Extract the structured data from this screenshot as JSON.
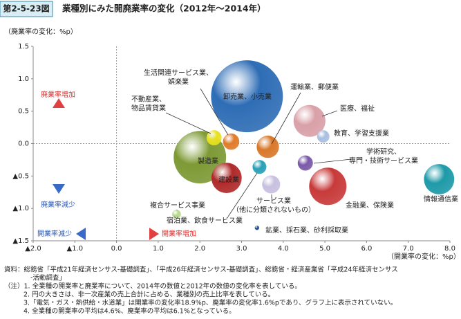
{
  "chart_data": {
    "type": "bubble",
    "figure_label": "第2-5-23図",
    "title": "業種別にみた開廃業率の変化（2012年～2014年）",
    "y_label": "（廃業率の変化：%p）",
    "x_label": "（開業率の変化：%p）",
    "xlim": [
      -2,
      8
    ],
    "ylim": [
      -1.5,
      1.5
    ],
    "xticks": [
      {
        "value": -2,
        "label": "▲2.0"
      },
      {
        "value": -1,
        "label": "▲1.0"
      },
      {
        "value": 0,
        "label": "0.0"
      },
      {
        "value": 1,
        "label": "1.0"
      },
      {
        "value": 2,
        "label": "2.0"
      },
      {
        "value": 3,
        "label": "3.0"
      },
      {
        "value": 4,
        "label": "4.0"
      },
      {
        "value": 5,
        "label": "5.0"
      },
      {
        "value": 6,
        "label": "6.0"
      },
      {
        "value": 7,
        "label": "7.0"
      },
      {
        "value": 8,
        "label": "8.0"
      }
    ],
    "yticks": [
      {
        "value": 1.5,
        "label": "1.5"
      },
      {
        "value": 1,
        "label": "1.0"
      },
      {
        "value": 0.5,
        "label": "0.5"
      },
      {
        "value": 0,
        "label": "0.0"
      },
      {
        "value": -0.5,
        "label": "▲0.5"
      },
      {
        "value": -1,
        "label": "▲1.0"
      },
      {
        "value": -1.5,
        "label": "▲1.5"
      }
    ],
    "points": [
      {
        "name": "卸売業、小売業",
        "x": 3.13,
        "y": 0.73,
        "size": 27,
        "color": "#2e6db5"
      },
      {
        "name": "製造業",
        "x": 2.0,
        "y": -0.21,
        "size": 14.4,
        "color": "#7d9a35"
      },
      {
        "name": "生活関連サービス業、\n娯楽業",
        "x": 2.75,
        "y": 0.03,
        "size": 1.4,
        "color": "#e07b2a"
      },
      {
        "name": "不動産業、\n物品賃貸業",
        "x": 2.34,
        "y": 0.09,
        "size": 1.2,
        "color": "#e8e020"
      },
      {
        "name": "建設業",
        "x": 2.64,
        "y": -0.53,
        "size": 4.8,
        "color": "#b02a2a"
      },
      {
        "name": "運輸業、郵便業",
        "x": 3.63,
        "y": -0.05,
        "size": 2.6,
        "color": "#d9782a"
      },
      {
        "name": "医療、福祉",
        "x": 4.63,
        "y": 0.35,
        "size": 5.3,
        "color": "#d9a0a8"
      },
      {
        "name": "教育、学習支援業",
        "x": 4.96,
        "y": 0.11,
        "size": 0.8,
        "color": "#a8c0e0"
      },
      {
        "name": "学術研究、\n専門・技術サービス業",
        "x": 4.53,
        "y": -0.3,
        "size": 1.2,
        "color": "#7a5aa8"
      },
      {
        "name": "サービス業\n（他に分類されないもの）",
        "x": 3.71,
        "y": -0.63,
        "size": 1.7,
        "color": "#c8c0e0"
      },
      {
        "name": "情報通信業",
        "x": 7.74,
        "y": -0.55,
        "size": 4.8,
        "color": "#1e9aa8"
      },
      {
        "name": "金融業、保険業",
        "x": 5.07,
        "y": -0.66,
        "size": 7.3,
        "color": "#c83a3a"
      },
      {
        "name": "複合サービス事業",
        "x": 1.44,
        "y": -1.09,
        "size": 0.4,
        "color": "#b8d890"
      },
      {
        "name": "宿泊業、飲食サービス業",
        "x": 3.43,
        "y": -0.36,
        "size": 1.0,
        "color": "#2aa0b8"
      },
      {
        "name": "鉱業、採石業、砂利採取業",
        "x": 3.37,
        "y": -1.3,
        "size": 0.1,
        "color": "#1e4a90"
      }
    ],
    "annotations": {
      "exit_up": "廃業率増加",
      "exit_down": "廃業率減少",
      "entry_down": "開業率減少",
      "entry_up": "開業率増加"
    },
    "notes": [
      "資料：総務省「平成21年経済センサス‐基礎調査」、「平成26年経済センサス‐基礎調査」、総務省・経済産業省「平成24年経済センサス",
      "‐活動調査」",
      "（注）1. 全業種の開業率と廃業率について、2014年の数値と2012年の数値の変化率を表している。",
      "2. 円の大きさは、非一次産業の売上合計に占める、業種別の売上比率を表している。",
      "3.「電気・ガス・熱供給・水道業」は開業率の変化率18.9%p、廃業率の変化率1.6%pであり、グラフ上に表示されていない。",
      "4. 全業種の開業率の平均は4.6%、廃業率の平均は6.1%となっている。"
    ]
  }
}
